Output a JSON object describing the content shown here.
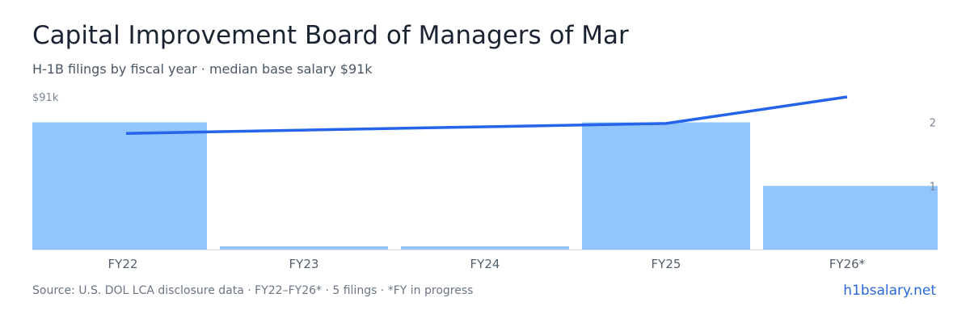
{
  "header": {
    "title": "Capital Improvement Board of Managers of Mar",
    "subtitle": "H-1B filings by fiscal year · median base salary $91k"
  },
  "footer": {
    "source": "Source: U.S. DOL LCA disclosure data · FY22–FY26* · 5 filings · *FY in progress",
    "brand": "h1bsalary.net"
  },
  "colors": {
    "bar": "#93c5fd",
    "line": "#2563eb",
    "baseline": "#d7dbe2"
  },
  "chart_data": {
    "type": "bar",
    "categories": [
      "FY22",
      "FY23",
      "FY24",
      "FY25",
      "FY26*"
    ],
    "series": [
      {
        "type": "bar",
        "axis": "right",
        "values": [
          2,
          0,
          0,
          2,
          1
        ]
      },
      {
        "type": "line",
        "axis": "left",
        "values": [
          80,
          81,
          82,
          83,
          91
        ]
      }
    ],
    "left_axis": {
      "top_label": "$91k",
      "max": 91
    },
    "right_axis": {
      "ticks": [
        "1",
        "2"
      ],
      "min": 0,
      "max": 2.4
    },
    "grid": false,
    "legend": "none"
  }
}
